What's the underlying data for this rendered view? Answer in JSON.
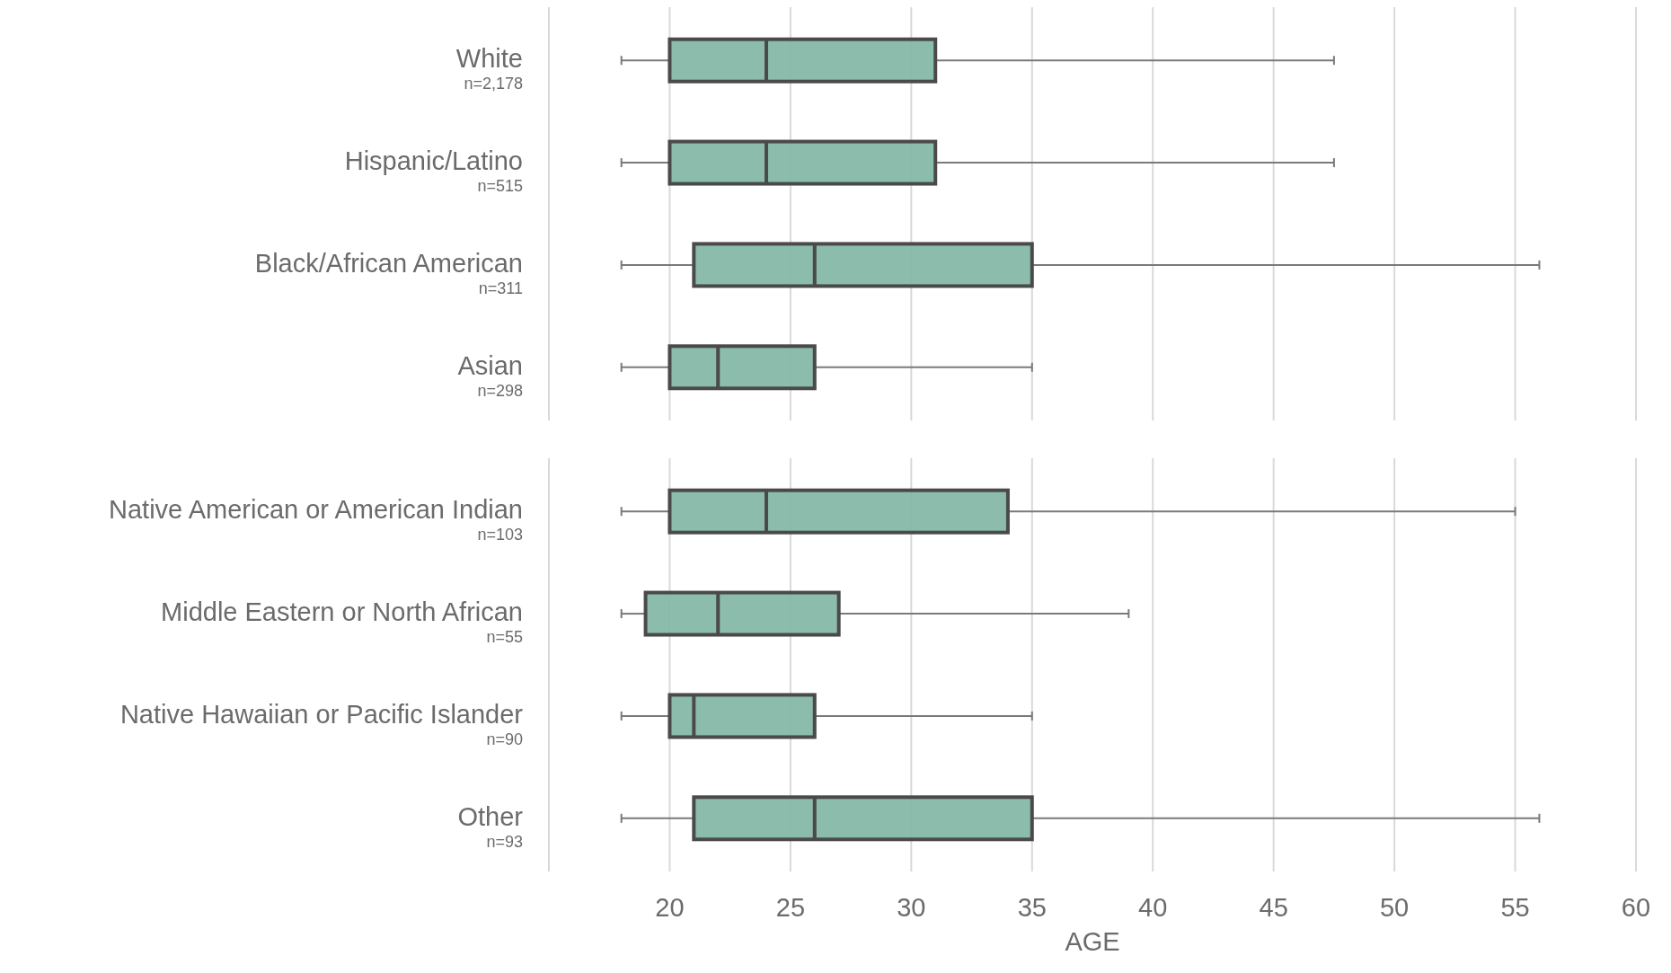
{
  "chart_data": [
    {
      "type": "box",
      "orientation": "horizontal",
      "color": "#86b8a6",
      "grid": "x",
      "tick_labels": "y",
      "categories": [
        "White\nn=2,178",
        "Hispanic/Latino\nn=515",
        "Black/African American\nn=311",
        "Asian\nn=298"
      ],
      "xlim": [
        15,
        60
      ],
      "xticks": [
        {
          "value": 15,
          "label": null
        },
        20,
        25,
        30,
        35,
        40,
        45,
        50,
        55,
        60
      ],
      "boxes": [
        {
          "low": 18,
          "q1": 20,
          "median": 24,
          "q3": 31,
          "high": 47.5
        },
        {
          "low": 18,
          "q1": 20,
          "median": 24,
          "q3": 31,
          "high": 47.5
        },
        {
          "low": 18,
          "q1": 21,
          "median": 26,
          "q3": 35,
          "high": 56
        },
        {
          "low": 18,
          "q1": 20,
          "median": 22,
          "q3": 26,
          "high": 35
        }
      ]
    },
    {
      "type": "box",
      "orientation": "horizontal",
      "color": "#86b8a6",
      "grid": "x",
      "xlabel": "AGE",
      "categories": [
        "Native American or American Indian\nn=103",
        "Middle Eastern or North African\nn=55",
        "Native Hawaiian or Pacific Islander\nn=90",
        "Other\nn=93"
      ],
      "xlim": [
        15,
        60
      ],
      "xticks": [
        {
          "value": 15,
          "label": null
        },
        20,
        25,
        30,
        35,
        40,
        45,
        50,
        55,
        60
      ],
      "boxes": [
        {
          "low": 18,
          "q1": 20,
          "median": 24,
          "q3": 34,
          "high": 55
        },
        {
          "low": 18,
          "q1": 19,
          "median": 22,
          "q3": 27,
          "high": 39
        },
        {
          "low": 18,
          "q1": 20,
          "median": 21,
          "q3": 26,
          "high": 35
        },
        {
          "low": 18,
          "q1": 21,
          "median": 26,
          "q3": 35,
          "high": 56
        }
      ]
    }
  ]
}
